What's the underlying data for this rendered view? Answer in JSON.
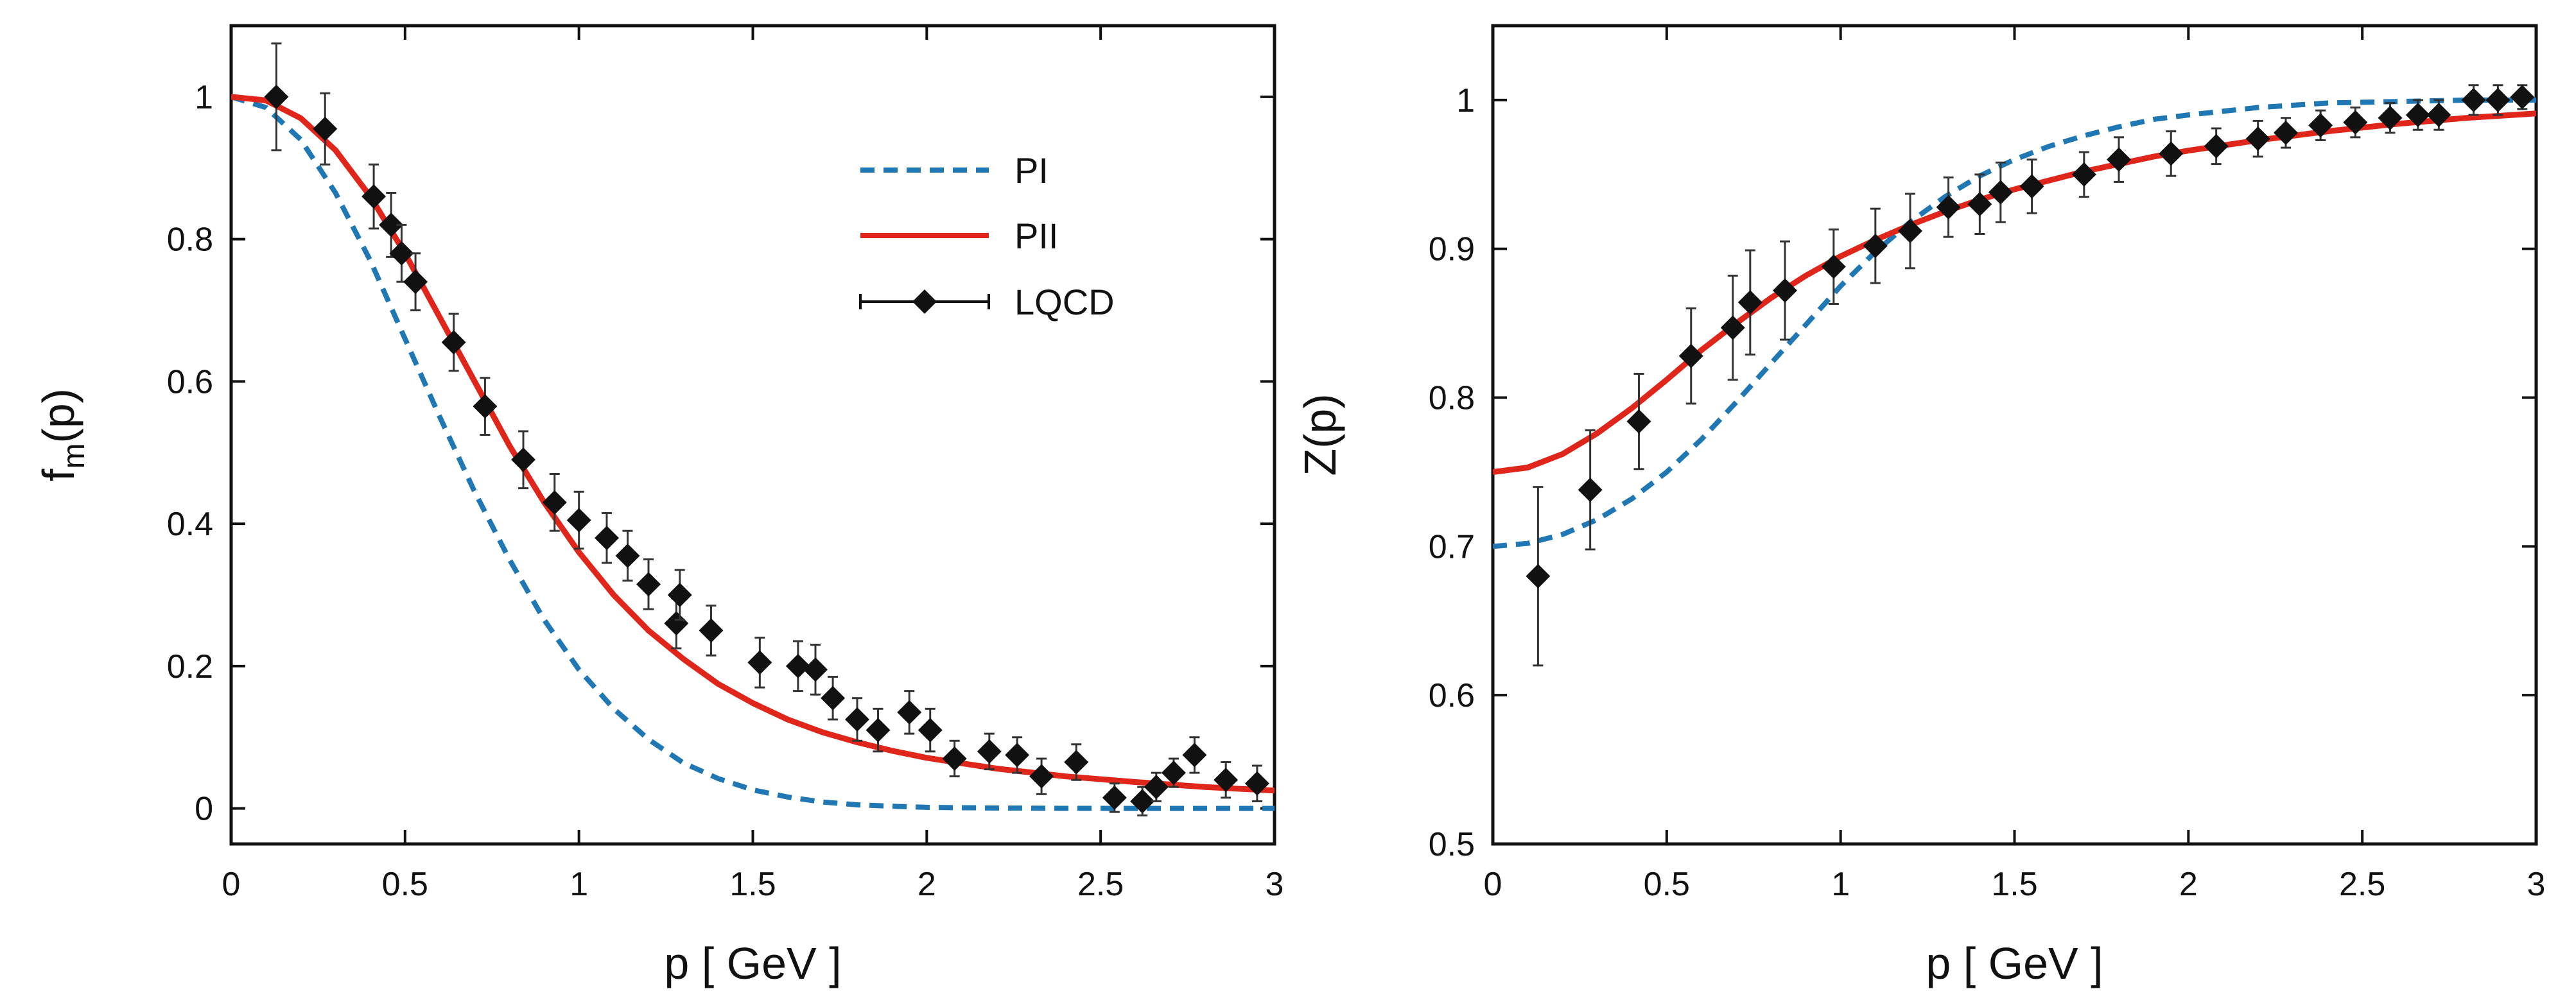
{
  "chart_data": [
    {
      "type": "line",
      "id": "left",
      "xlabel": "p  [ GeV ]",
      "ylabel_main": "f",
      "ylabel_sub": "m",
      "ylabel_tail": "(p)",
      "xlim": [
        0,
        3
      ],
      "ylim": [
        -0.05,
        1.1
      ],
      "x_ticks": [
        0,
        0.5,
        1,
        1.5,
        2,
        2.5,
        3
      ],
      "x_tick_labels": [
        "0",
        "0.5",
        "1",
        "1.5",
        "2",
        "2.5",
        "3"
      ],
      "y_ticks": [
        0,
        0.2,
        0.4,
        0.6,
        0.8,
        1
      ],
      "y_tick_labels": [
        "0",
        "0.2",
        "0.4",
        "0.6",
        "0.8",
        "1"
      ],
      "legend": {
        "placement": "top-right",
        "entries": [
          {
            "label": "PI",
            "style": "dashed",
            "color": "#1f77b4"
          },
          {
            "label": "PII",
            "style": "solid",
            "color": "#e0261b"
          },
          {
            "label": "LQCD",
            "style": "points-errorbars",
            "color": "#111111"
          }
        ]
      },
      "series": [
        {
          "name": "PI",
          "style": "dashed",
          "color": "#1f77b4",
          "x": [
            0,
            0.1,
            0.2,
            0.3,
            0.4,
            0.5,
            0.6,
            0.7,
            0.8,
            0.9,
            1.0,
            1.1,
            1.2,
            1.3,
            1.4,
            1.5,
            1.6,
            1.7,
            1.8,
            1.9,
            2.0,
            2.2,
            2.4,
            2.6,
            2.8,
            3.0
          ],
          "y": [
            1.0,
            0.985,
            0.94,
            0.865,
            0.77,
            0.66,
            0.55,
            0.445,
            0.35,
            0.265,
            0.195,
            0.14,
            0.097,
            0.064,
            0.042,
            0.026,
            0.016,
            0.009,
            0.005,
            0.003,
            0.0015,
            0.0005,
            0.0001,
            0.0,
            0.0,
            0.0
          ]
        },
        {
          "name": "PII",
          "style": "solid",
          "color": "#e0261b",
          "x": [
            0,
            0.1,
            0.2,
            0.3,
            0.4,
            0.5,
            0.6,
            0.7,
            0.8,
            0.9,
            1.0,
            1.1,
            1.2,
            1.3,
            1.4,
            1.5,
            1.6,
            1.7,
            1.8,
            1.9,
            2.0,
            2.2,
            2.4,
            2.6,
            2.8,
            3.0
          ],
          "y": [
            1.0,
            0.995,
            0.97,
            0.925,
            0.86,
            0.78,
            0.69,
            0.6,
            0.51,
            0.43,
            0.36,
            0.3,
            0.25,
            0.21,
            0.175,
            0.148,
            0.125,
            0.107,
            0.093,
            0.081,
            0.071,
            0.056,
            0.045,
            0.037,
            0.03,
            0.025
          ]
        },
        {
          "name": "LQCD",
          "style": "points-errorbars",
          "color": "#111111",
          "x": [
            0.13,
            0.27,
            0.41,
            0.46,
            0.49,
            0.53,
            0.64,
            0.73,
            0.84,
            0.93,
            1.0,
            1.08,
            1.14,
            1.2,
            1.28,
            1.29,
            1.38,
            1.52,
            1.63,
            1.68,
            1.73,
            1.8,
            1.86,
            1.95,
            2.01,
            2.08,
            2.18,
            2.26,
            2.33,
            2.43,
            2.54,
            2.62,
            2.66,
            2.71,
            2.77,
            2.86,
            2.95
          ],
          "y": [
            1.0,
            0.955,
            0.86,
            0.82,
            0.78,
            0.74,
            0.655,
            0.565,
            0.49,
            0.43,
            0.405,
            0.38,
            0.355,
            0.315,
            0.26,
            0.3,
            0.25,
            0.205,
            0.2,
            0.195,
            0.155,
            0.125,
            0.11,
            0.135,
            0.11,
            0.07,
            0.08,
            0.075,
            0.045,
            0.065,
            0.015,
            0.01,
            0.03,
            0.05,
            0.075,
            0.04,
            0.035
          ],
          "err": [
            0.075,
            0.05,
            0.045,
            0.045,
            0.04,
            0.04,
            0.04,
            0.04,
            0.04,
            0.04,
            0.04,
            0.035,
            0.035,
            0.035,
            0.035,
            0.035,
            0.035,
            0.035,
            0.035,
            0.035,
            0.03,
            0.03,
            0.03,
            0.03,
            0.03,
            0.025,
            0.025,
            0.025,
            0.025,
            0.025,
            0.02,
            0.02,
            0.02,
            0.02,
            0.025,
            0.025,
            0.025
          ]
        }
      ]
    },
    {
      "type": "line",
      "id": "right",
      "xlabel": "p  [ GeV ]",
      "ylabel_main": "Z(p)",
      "ylabel_sub": "",
      "ylabel_tail": "",
      "xlim": [
        0,
        3
      ],
      "ylim": [
        0.5,
        1.05
      ],
      "x_ticks": [
        0,
        0.5,
        1,
        1.5,
        2,
        2.5,
        3
      ],
      "x_tick_labels": [
        "0",
        "0.5",
        "1",
        "1.5",
        "2",
        "2.5",
        "3"
      ],
      "y_ticks": [
        0.5,
        0.6,
        0.7,
        0.8,
        0.9,
        1
      ],
      "y_tick_labels": [
        "0.5",
        "0.6",
        "0.7",
        "0.8",
        "0.9",
        "1"
      ],
      "series": [
        {
          "name": "PI",
          "style": "dashed",
          "color": "#1f77b4",
          "x": [
            0,
            0.1,
            0.2,
            0.3,
            0.4,
            0.5,
            0.6,
            0.7,
            0.8,
            0.9,
            1.0,
            1.1,
            1.2,
            1.3,
            1.4,
            1.5,
            1.6,
            1.7,
            1.8,
            1.9,
            2.0,
            2.2,
            2.4,
            2.6,
            2.8,
            3.0
          ],
          "y": [
            0.7,
            0.702,
            0.708,
            0.718,
            0.732,
            0.75,
            0.772,
            0.797,
            0.823,
            0.849,
            0.875,
            0.898,
            0.918,
            0.935,
            0.949,
            0.96,
            0.969,
            0.976,
            0.982,
            0.987,
            0.99,
            0.995,
            0.998,
            0.999,
            1.0,
            1.0
          ]
        },
        {
          "name": "PII",
          "style": "solid",
          "color": "#e0261b",
          "x": [
            0,
            0.1,
            0.2,
            0.3,
            0.4,
            0.5,
            0.6,
            0.7,
            0.8,
            0.9,
            1.0,
            1.1,
            1.2,
            1.3,
            1.4,
            1.5,
            1.6,
            1.7,
            1.8,
            1.9,
            2.0,
            2.2,
            2.4,
            2.6,
            2.8,
            3.0
          ],
          "y": [
            0.75,
            0.753,
            0.762,
            0.776,
            0.793,
            0.812,
            0.832,
            0.85,
            0.867,
            0.882,
            0.895,
            0.906,
            0.916,
            0.925,
            0.933,
            0.94,
            0.946,
            0.952,
            0.957,
            0.962,
            0.966,
            0.973,
            0.979,
            0.984,
            0.988,
            0.991
          ]
        },
        {
          "name": "LQCD",
          "style": "points-errorbars",
          "color": "#111111",
          "x": [
            0.13,
            0.28,
            0.42,
            0.57,
            0.69,
            0.74,
            0.84,
            0.98,
            1.1,
            1.2,
            1.31,
            1.4,
            1.46,
            1.55,
            1.7,
            1.8,
            1.95,
            2.08,
            2.2,
            2.28,
            2.38,
            2.48,
            2.58,
            2.66,
            2.72,
            2.82,
            2.89,
            2.96
          ],
          "y": [
            0.68,
            0.738,
            0.784,
            0.828,
            0.847,
            0.864,
            0.872,
            0.888,
            0.902,
            0.912,
            0.928,
            0.93,
            0.938,
            0.942,
            0.95,
            0.96,
            0.964,
            0.969,
            0.974,
            0.978,
            0.983,
            0.985,
            0.988,
            0.99,
            0.99,
            1.0,
            1.0,
            1.002
          ],
          "err": [
            0.06,
            0.04,
            0.032,
            0.032,
            0.035,
            0.035,
            0.033,
            0.025,
            0.025,
            0.025,
            0.02,
            0.02,
            0.02,
            0.018,
            0.015,
            0.015,
            0.015,
            0.012,
            0.012,
            0.01,
            0.01,
            0.01,
            0.01,
            0.01,
            0.01,
            0.01,
            0.01,
            0.008
          ]
        }
      ]
    }
  ]
}
